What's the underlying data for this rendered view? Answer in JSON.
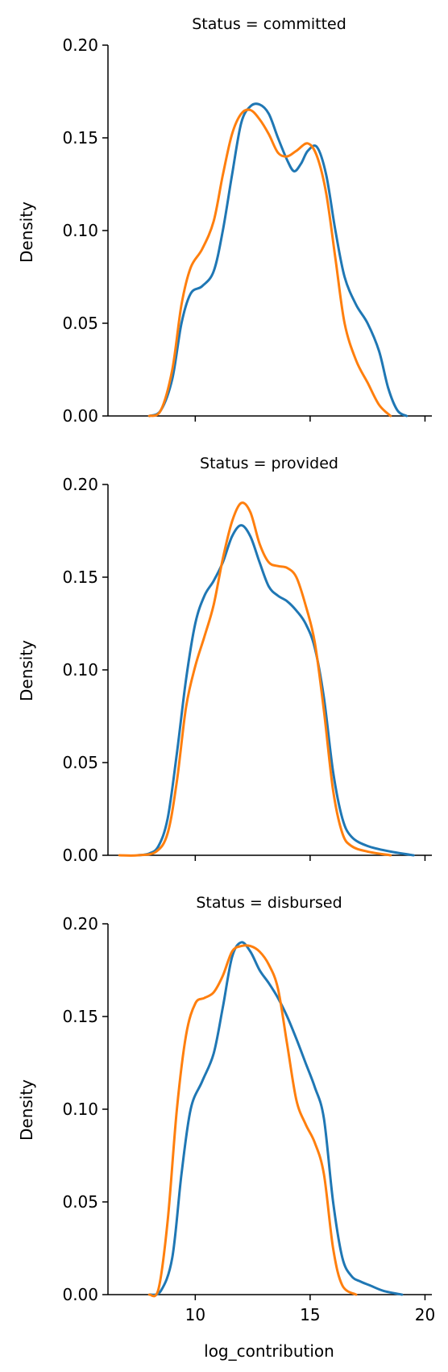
{
  "chart_data": [
    {
      "type": "line",
      "title": "Status = committed",
      "xlabel": "",
      "ylabel": "Density",
      "xlim": [
        6.2,
        20.3
      ],
      "ylim": [
        0,
        0.2
      ],
      "xticks": [
        10,
        15,
        20
      ],
      "yticks": [
        "0.00",
        "0.05",
        "0.10",
        "0.15",
        "0.20"
      ],
      "grid": false,
      "series": [
        {
          "color": "#1f77b4",
          "points": [
            [
              8.0,
              0.0
            ],
            [
              8.5,
              0.003
            ],
            [
              9.0,
              0.02
            ],
            [
              9.4,
              0.05
            ],
            [
              9.8,
              0.066
            ],
            [
              10.3,
              0.07
            ],
            [
              10.8,
              0.078
            ],
            [
              11.2,
              0.1
            ],
            [
              11.6,
              0.13
            ],
            [
              12.0,
              0.158
            ],
            [
              12.4,
              0.167
            ],
            [
              12.8,
              0.168
            ],
            [
              13.2,
              0.163
            ],
            [
              13.6,
              0.15
            ],
            [
              14.0,
              0.138
            ],
            [
              14.3,
              0.132
            ],
            [
              14.6,
              0.136
            ],
            [
              14.9,
              0.143
            ],
            [
              15.3,
              0.145
            ],
            [
              15.7,
              0.13
            ],
            [
              16.1,
              0.1
            ],
            [
              16.5,
              0.075
            ],
            [
              17.0,
              0.06
            ],
            [
              17.5,
              0.05
            ],
            [
              18.0,
              0.035
            ],
            [
              18.4,
              0.015
            ],
            [
              18.8,
              0.003
            ],
            [
              19.2,
              0.0
            ]
          ]
        },
        {
          "color": "#ff7f0e",
          "points": [
            [
              8.0,
              0.0
            ],
            [
              8.5,
              0.003
            ],
            [
              9.0,
              0.025
            ],
            [
              9.4,
              0.06
            ],
            [
              9.8,
              0.08
            ],
            [
              10.3,
              0.09
            ],
            [
              10.8,
              0.105
            ],
            [
              11.2,
              0.13
            ],
            [
              11.6,
              0.152
            ],
            [
              12.0,
              0.163
            ],
            [
              12.4,
              0.165
            ],
            [
              12.8,
              0.16
            ],
            [
              13.2,
              0.152
            ],
            [
              13.6,
              0.142
            ],
            [
              14.0,
              0.14
            ],
            [
              14.4,
              0.143
            ],
            [
              14.9,
              0.147
            ],
            [
              15.3,
              0.14
            ],
            [
              15.7,
              0.12
            ],
            [
              16.1,
              0.085
            ],
            [
              16.5,
              0.05
            ],
            [
              17.0,
              0.03
            ],
            [
              17.5,
              0.018
            ],
            [
              18.0,
              0.006
            ],
            [
              18.5,
              0.0
            ]
          ]
        }
      ]
    },
    {
      "type": "line",
      "title": "Status = provided",
      "xlabel": "",
      "ylabel": "Density",
      "xlim": [
        6.2,
        20.3
      ],
      "ylim": [
        0,
        0.2
      ],
      "xticks": [
        10,
        15,
        20
      ],
      "yticks": [
        "0.00",
        "0.05",
        "0.10",
        "0.15",
        "0.20"
      ],
      "grid": false,
      "series": [
        {
          "color": "#1f77b4",
          "points": [
            [
              7.5,
              0.0
            ],
            [
              8.0,
              0.001
            ],
            [
              8.4,
              0.005
            ],
            [
              8.8,
              0.02
            ],
            [
              9.2,
              0.055
            ],
            [
              9.6,
              0.095
            ],
            [
              10.0,
              0.125
            ],
            [
              10.4,
              0.14
            ],
            [
              10.8,
              0.148
            ],
            [
              11.2,
              0.158
            ],
            [
              11.6,
              0.172
            ],
            [
              12.0,
              0.178
            ],
            [
              12.4,
              0.172
            ],
            [
              12.8,
              0.158
            ],
            [
              13.2,
              0.145
            ],
            [
              13.6,
              0.14
            ],
            [
              14.0,
              0.137
            ],
            [
              14.4,
              0.132
            ],
            [
              14.8,
              0.125
            ],
            [
              15.2,
              0.112
            ],
            [
              15.6,
              0.085
            ],
            [
              16.0,
              0.045
            ],
            [
              16.4,
              0.02
            ],
            [
              16.8,
              0.01
            ],
            [
              17.5,
              0.005
            ],
            [
              18.5,
              0.002
            ],
            [
              19.5,
              0.0
            ]
          ]
        },
        {
          "color": "#ff7f0e",
          "points": [
            [
              6.7,
              0.0
            ],
            [
              7.5,
              0.0
            ],
            [
              8.3,
              0.002
            ],
            [
              8.8,
              0.012
            ],
            [
              9.2,
              0.04
            ],
            [
              9.6,
              0.08
            ],
            [
              10.0,
              0.102
            ],
            [
              10.4,
              0.118
            ],
            [
              10.8,
              0.135
            ],
            [
              11.2,
              0.16
            ],
            [
              11.6,
              0.18
            ],
            [
              12.0,
              0.19
            ],
            [
              12.4,
              0.185
            ],
            [
              12.8,
              0.168
            ],
            [
              13.2,
              0.158
            ],
            [
              13.6,
              0.156
            ],
            [
              14.0,
              0.155
            ],
            [
              14.4,
              0.15
            ],
            [
              14.8,
              0.135
            ],
            [
              15.2,
              0.115
            ],
            [
              15.6,
              0.078
            ],
            [
              16.0,
              0.035
            ],
            [
              16.4,
              0.012
            ],
            [
              16.8,
              0.005
            ],
            [
              17.5,
              0.002
            ],
            [
              18.5,
              0.0
            ]
          ]
        }
      ]
    },
    {
      "type": "line",
      "title": "Status = disbursed",
      "xlabel": "log_contribution",
      "ylabel": "Density",
      "xlim": [
        6.2,
        20.3
      ],
      "ylim": [
        0,
        0.2
      ],
      "xticks": [
        10,
        15,
        20
      ],
      "yticks": [
        "0.00",
        "0.05",
        "0.10",
        "0.15",
        "0.20"
      ],
      "grid": false,
      "series": [
        {
          "color": "#1f77b4",
          "points": [
            [
              8.0,
              0.0
            ],
            [
              8.5,
              0.002
            ],
            [
              9.0,
              0.02
            ],
            [
              9.4,
              0.065
            ],
            [
              9.8,
              0.1
            ],
            [
              10.3,
              0.115
            ],
            [
              10.8,
              0.13
            ],
            [
              11.2,
              0.155
            ],
            [
              11.6,
              0.182
            ],
            [
              12.0,
              0.19
            ],
            [
              12.4,
              0.185
            ],
            [
              12.8,
              0.175
            ],
            [
              13.2,
              0.168
            ],
            [
              13.6,
              0.16
            ],
            [
              14.0,
              0.15
            ],
            [
              14.4,
              0.138
            ],
            [
              14.8,
              0.125
            ],
            [
              15.2,
              0.112
            ],
            [
              15.6,
              0.095
            ],
            [
              16.0,
              0.05
            ],
            [
              16.4,
              0.02
            ],
            [
              16.8,
              0.01
            ],
            [
              17.2,
              0.007
            ],
            [
              17.6,
              0.005
            ],
            [
              18.2,
              0.002
            ],
            [
              19.0,
              0.0
            ]
          ]
        },
        {
          "color": "#ff7f0e",
          "points": [
            [
              8.0,
              0.0
            ],
            [
              8.4,
              0.003
            ],
            [
              8.8,
              0.04
            ],
            [
              9.2,
              0.1
            ],
            [
              9.6,
              0.14
            ],
            [
              10.0,
              0.157
            ],
            [
              10.4,
              0.16
            ],
            [
              10.8,
              0.163
            ],
            [
              11.2,
              0.172
            ],
            [
              11.6,
              0.185
            ],
            [
              12.0,
              0.188
            ],
            [
              12.4,
              0.188
            ],
            [
              12.8,
              0.185
            ],
            [
              13.2,
              0.178
            ],
            [
              13.6,
              0.165
            ],
            [
              14.0,
              0.135
            ],
            [
              14.4,
              0.105
            ],
            [
              14.8,
              0.092
            ],
            [
              15.2,
              0.082
            ],
            [
              15.6,
              0.065
            ],
            [
              16.0,
              0.025
            ],
            [
              16.4,
              0.005
            ],
            [
              17.0,
              0.0
            ]
          ]
        }
      ]
    }
  ]
}
